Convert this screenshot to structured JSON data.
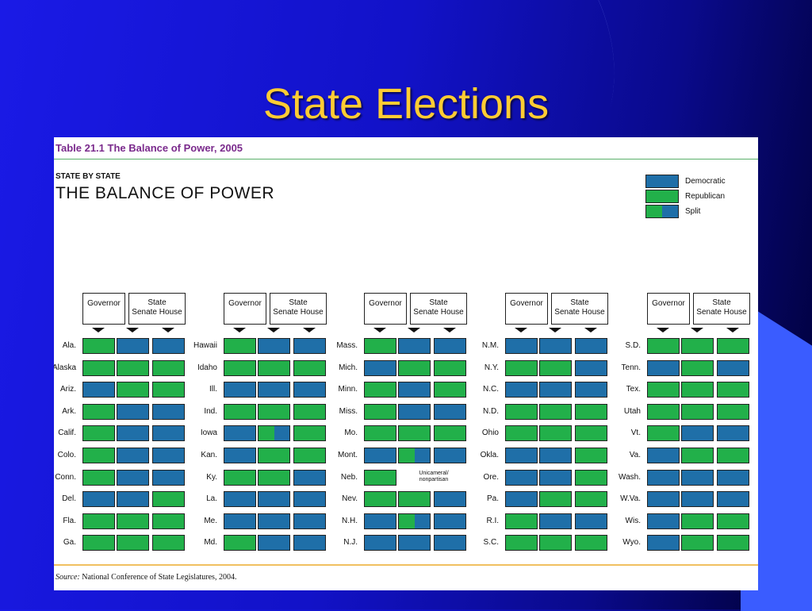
{
  "slide": {
    "title": "State Elections"
  },
  "figure": {
    "table_title": "Table 21.1    The Balance of Power, 2005",
    "subhead": "STATE BY STATE",
    "heading": "THE BALANCE OF POWER",
    "source_label": "Source:",
    "source_text": " National Conference of State Legislatures, 2004."
  },
  "colors": {
    "D": "#1f6fa8",
    "R": "#22b04a",
    "outline": "#222222"
  },
  "legend": [
    {
      "code": "D",
      "label": "Democratic"
    },
    {
      "code": "R",
      "label": "Republican"
    },
    {
      "code": "S",
      "label": "Split"
    }
  ],
  "headers": {
    "governor": "Governor",
    "state": "State",
    "senate": "Senate",
    "house": "House"
  },
  "columns": [
    {
      "states": [
        {
          "name": "Ala.",
          "gov": "R",
          "senate": "D",
          "house": "D"
        },
        {
          "name": "Alaska",
          "gov": "R",
          "senate": "R",
          "house": "R"
        },
        {
          "name": "Ariz.",
          "gov": "D",
          "senate": "R",
          "house": "R"
        },
        {
          "name": "Ark.",
          "gov": "R",
          "senate": "D",
          "house": "D"
        },
        {
          "name": "Calif.",
          "gov": "R",
          "senate": "D",
          "house": "D"
        },
        {
          "name": "Colo.",
          "gov": "R",
          "senate": "D",
          "house": "D"
        },
        {
          "name": "Conn.",
          "gov": "R",
          "senate": "D",
          "house": "D"
        },
        {
          "name": "Del.",
          "gov": "D",
          "senate": "D",
          "house": "R"
        },
        {
          "name": "Fla.",
          "gov": "R",
          "senate": "R",
          "house": "R"
        },
        {
          "name": "Ga.",
          "gov": "R",
          "senate": "R",
          "house": "R"
        }
      ]
    },
    {
      "states": [
        {
          "name": "Hawaii",
          "gov": "R",
          "senate": "D",
          "house": "D"
        },
        {
          "name": "Idaho",
          "gov": "R",
          "senate": "R",
          "house": "R"
        },
        {
          "name": "Ill.",
          "gov": "D",
          "senate": "D",
          "house": "D"
        },
        {
          "name": "Ind.",
          "gov": "R",
          "senate": "R",
          "house": "R"
        },
        {
          "name": "Iowa",
          "gov": "D",
          "senate": "S",
          "house": "R"
        },
        {
          "name": "Kan.",
          "gov": "D",
          "senate": "R",
          "house": "R"
        },
        {
          "name": "Ky.",
          "gov": "R",
          "senate": "R",
          "house": "D"
        },
        {
          "name": "La.",
          "gov": "D",
          "senate": "D",
          "house": "D"
        },
        {
          "name": "Me.",
          "gov": "D",
          "senate": "D",
          "house": "D"
        },
        {
          "name": "Md.",
          "gov": "R",
          "senate": "D",
          "house": "D"
        }
      ]
    },
    {
      "states": [
        {
          "name": "Mass.",
          "gov": "R",
          "senate": "D",
          "house": "D"
        },
        {
          "name": "Mich.",
          "gov": "D",
          "senate": "R",
          "house": "R"
        },
        {
          "name": "Minn.",
          "gov": "R",
          "senate": "D",
          "house": "R"
        },
        {
          "name": "Miss.",
          "gov": "R",
          "senate": "D",
          "house": "D"
        },
        {
          "name": "Mo.",
          "gov": "R",
          "senate": "R",
          "house": "R"
        },
        {
          "name": "Mont.",
          "gov": "D",
          "senate": "S",
          "house": "D"
        },
        {
          "name": "Neb.",
          "gov": "R",
          "note": "Unicameral/ nonpartisan"
        },
        {
          "name": "Nev.",
          "gov": "R",
          "senate": "R",
          "house": "D"
        },
        {
          "name": "N.H.",
          "gov": "D",
          "senate": "S",
          "house": "D"
        },
        {
          "name": "N.J.",
          "gov": "D",
          "senate": "D",
          "house": "D"
        }
      ]
    },
    {
      "states": [
        {
          "name": "N.M.",
          "gov": "D",
          "senate": "D",
          "house": "D"
        },
        {
          "name": "N.Y.",
          "gov": "R",
          "senate": "R",
          "house": "D"
        },
        {
          "name": "N.C.",
          "gov": "D",
          "senate": "D",
          "house": "D"
        },
        {
          "name": "N.D.",
          "gov": "R",
          "senate": "R",
          "house": "R"
        },
        {
          "name": "Ohio",
          "gov": "R",
          "senate": "R",
          "house": "R"
        },
        {
          "name": "Okla.",
          "gov": "D",
          "senate": "D",
          "house": "R"
        },
        {
          "name": "Ore.",
          "gov": "D",
          "senate": "D",
          "house": "R"
        },
        {
          "name": "Pa.",
          "gov": "D",
          "senate": "R",
          "house": "R"
        },
        {
          "name": "R.I.",
          "gov": "R",
          "senate": "D",
          "house": "D"
        },
        {
          "name": "S.C.",
          "gov": "R",
          "senate": "R",
          "house": "R"
        }
      ]
    },
    {
      "states": [
        {
          "name": "S.D.",
          "gov": "R",
          "senate": "R",
          "house": "R"
        },
        {
          "name": "Tenn.",
          "gov": "D",
          "senate": "R",
          "house": "D"
        },
        {
          "name": "Tex.",
          "gov": "R",
          "senate": "R",
          "house": "R"
        },
        {
          "name": "Utah",
          "gov": "R",
          "senate": "R",
          "house": "R"
        },
        {
          "name": "Vt.",
          "gov": "R",
          "senate": "D",
          "house": "D"
        },
        {
          "name": "Va.",
          "gov": "D",
          "senate": "R",
          "house": "R"
        },
        {
          "name": "Wash.",
          "gov": "D",
          "senate": "D",
          "house": "D"
        },
        {
          "name": "W.Va.",
          "gov": "D",
          "senate": "D",
          "house": "D"
        },
        {
          "name": "Wis.",
          "gov": "D",
          "senate": "R",
          "house": "R"
        },
        {
          "name": "Wyo.",
          "gov": "D",
          "senate": "R",
          "house": "R"
        }
      ]
    }
  ]
}
